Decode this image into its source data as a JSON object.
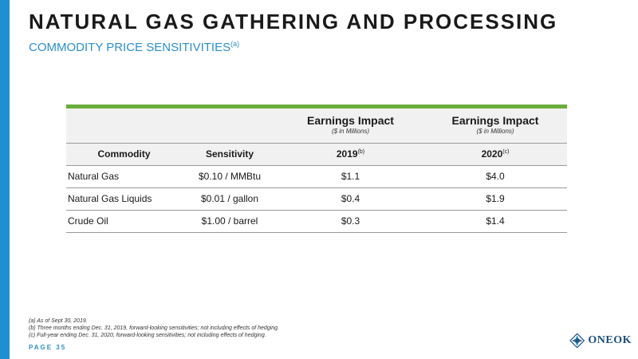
{
  "title": "NATURAL GAS GATHERING AND PROCESSING",
  "subtitle": {
    "text": "COMMODITY PRICE SENSITIVITIES",
    "note": "(a)"
  },
  "table": {
    "header_group": {
      "col3_title": "Earnings Impact",
      "col3_sub": "($ in Millions)",
      "col4_title": "Earnings Impact",
      "col4_sub": "($ in Millions)"
    },
    "columns": {
      "commodity": "Commodity",
      "sensitivity": "Sensitivity",
      "y2019": "2019",
      "y2019_note": "(b)",
      "y2020": "2020",
      "y2020_note": "(c)"
    },
    "rows": [
      {
        "commodity": "Natural Gas",
        "sensitivity": "$0.10 / MMBtu",
        "v2019": "$1.1",
        "v2020": "$4.0"
      },
      {
        "commodity": "Natural Gas Liquids",
        "sensitivity": "$0.01 / gallon",
        "v2019": "$0.4",
        "v2020": "$1.9"
      },
      {
        "commodity": "Crude Oil",
        "sensitivity": "$1.00 / barrel",
        "v2019": "$0.3",
        "v2020": "$1.4"
      }
    ]
  },
  "footnotes": [
    "(a) As of Sept 30, 2019.",
    "(b) Three months ending Dec. 31, 2019, forward-looking sensitivities; not including effects of hedging.",
    "(c) Full-year ending Dec. 31, 2020, forward-looking sensitivities; not including effects of hedging."
  ],
  "page_label": "PAGE 35",
  "logo_text": "ONEOK",
  "colors": {
    "accent_blue": "#1e8fd0",
    "accent_green": "#6aad3b",
    "logo_blue": "#1c4f7c"
  }
}
